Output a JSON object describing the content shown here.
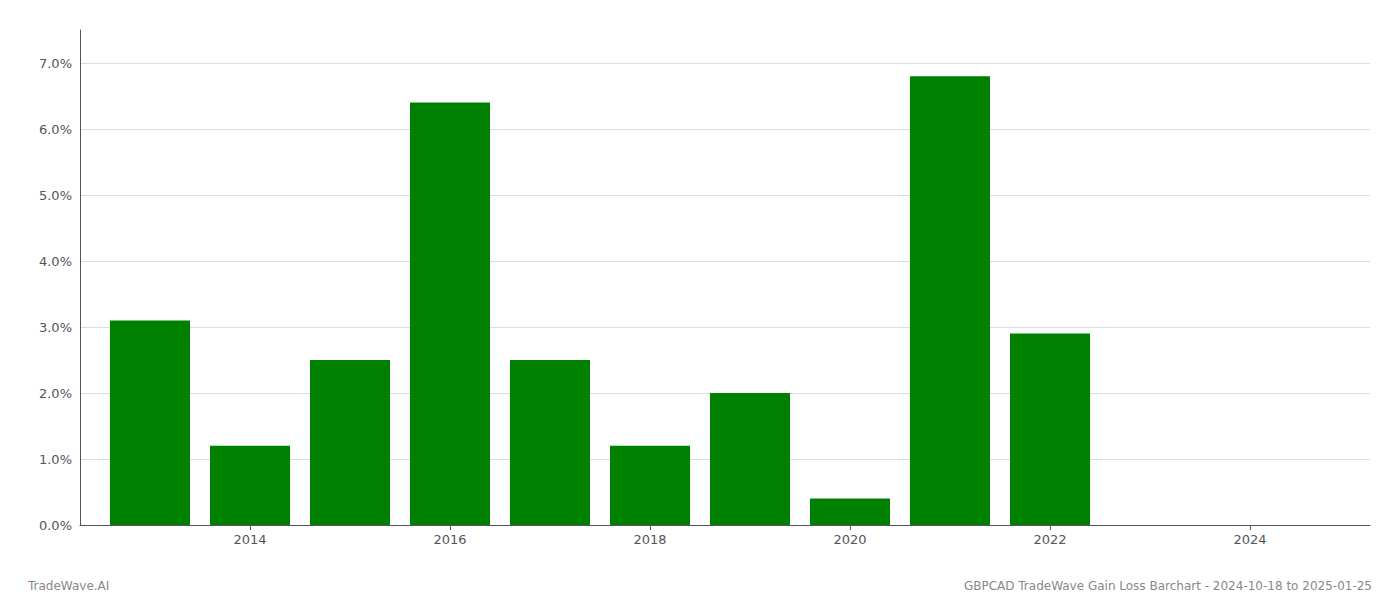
{
  "chart_data": {
    "type": "bar",
    "x": [
      2013,
      2014,
      2015,
      2016,
      2017,
      2018,
      2019,
      2020,
      2021,
      2022,
      2023,
      2024
    ],
    "values": [
      0.031,
      0.012,
      0.025,
      0.064,
      0.025,
      0.012,
      0.02,
      0.004,
      0.068,
      0.029,
      0.0,
      0.0
    ],
    "color": "#008000",
    "xlim": [
      2012.3,
      2025.2
    ],
    "xticks": [
      2014,
      2016,
      2018,
      2020,
      2022,
      2024
    ],
    "ylim": [
      0,
      0.075
    ],
    "yticks": [
      {
        "value": 0.0,
        "label": "0.0%"
      },
      {
        "value": 0.01,
        "label": "1.0%"
      },
      {
        "value": 0.02,
        "label": "2.0%"
      },
      {
        "value": 0.03,
        "label": "3.0%"
      },
      {
        "value": 0.04,
        "label": "4.0%"
      },
      {
        "value": 0.05,
        "label": "5.0%"
      },
      {
        "value": 0.06,
        "label": "6.0%"
      },
      {
        "value": 0.07,
        "label": "7.0%"
      }
    ],
    "grid": true,
    "annotations": [
      "TradeWave.AI",
      "GBPCAD TradeWave Gain Loss Barchart - 2024-10-18 to 2025-01-25"
    ]
  }
}
